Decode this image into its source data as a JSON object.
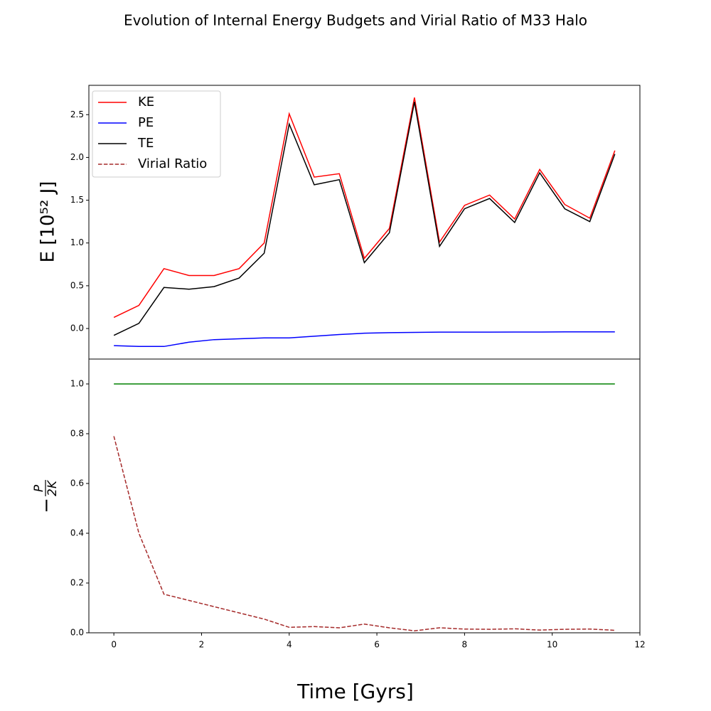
{
  "chart_data": [
    {
      "type": "line",
      "title": "Evolution of Internal Energy Budgets and Virial Ratio of M33 Halo",
      "ylabel": "E [10⁵² J]",
      "x": [
        0,
        0.571,
        1.143,
        1.714,
        2.286,
        2.857,
        3.429,
        4.0,
        4.571,
        5.143,
        5.714,
        6.286,
        6.857,
        7.429,
        8.0,
        8.571,
        9.143,
        9.714,
        10.286,
        10.857,
        11.429
      ],
      "series": [
        {
          "name": "KE",
          "color": "#ff0000",
          "values": [
            0.13,
            0.27,
            0.7,
            0.62,
            0.62,
            0.7,
            1.0,
            2.51,
            1.77,
            1.81,
            0.82,
            1.17,
            2.7,
            1.01,
            1.44,
            1.56,
            1.28,
            1.86,
            1.45,
            1.29,
            2.08
          ]
        },
        {
          "name": "PE",
          "color": "#0000ff",
          "values": [
            -0.2,
            -0.21,
            -0.21,
            -0.16,
            -0.13,
            -0.12,
            -0.11,
            -0.11,
            -0.09,
            -0.07,
            -0.055,
            -0.048,
            -0.045,
            -0.042,
            -0.042,
            -0.042,
            -0.041,
            -0.041,
            -0.039,
            -0.039,
            -0.039
          ]
        },
        {
          "name": "TE",
          "color": "#000000",
          "values": [
            -0.08,
            0.06,
            0.48,
            0.46,
            0.49,
            0.59,
            0.88,
            2.39,
            1.68,
            1.74,
            0.77,
            1.12,
            2.65,
            0.96,
            1.4,
            1.52,
            1.24,
            1.82,
            1.4,
            1.25,
            2.04
          ]
        }
      ],
      "xlim": [
        -0.57,
        12.0
      ],
      "ylim": [
        -0.357,
        2.843
      ],
      "yticks": [
        {
          "value": 0,
          "label": "0.0"
        },
        {
          "value": 0.5,
          "label": "0.5"
        },
        {
          "value": 1,
          "label": "1.0"
        },
        {
          "value": 1.5,
          "label": "1.5"
        },
        {
          "value": 2,
          "label": "2.0"
        },
        {
          "value": 2.5,
          "label": "2.5"
        }
      ],
      "legend": "upper left",
      "grid": false
    },
    {
      "type": "line",
      "ylabel": {
        "sign": "−",
        "numerator": "P",
        "denominator": "2K"
      },
      "xlabel": "Time [Gyrs]",
      "x": [
        0,
        0.571,
        1.143,
        1.714,
        2.286,
        2.857,
        3.429,
        4.0,
        4.571,
        5.143,
        5.714,
        6.286,
        6.857,
        7.429,
        8.0,
        8.571,
        9.143,
        9.714,
        10.286,
        10.857,
        11.429
      ],
      "series": [
        {
          "color": "#008000",
          "values": [
            1,
            1,
            1,
            1,
            1,
            1,
            1,
            1,
            1,
            1,
            1,
            1,
            1,
            1,
            1,
            1,
            1,
            1,
            1,
            1,
            1
          ]
        },
        {
          "name": "Virial Ratio",
          "color": "#a52a2a",
          "dashed": true,
          "values": [
            0.79,
            0.4,
            0.155,
            0.13,
            0.105,
            0.08,
            0.055,
            0.022,
            0.025,
            0.02,
            0.035,
            0.02,
            0.008,
            0.02,
            0.015,
            0.014,
            0.016,
            0.011,
            0.014,
            0.015,
            0.01
          ]
        }
      ],
      "xlim": [
        -0.57,
        12.0
      ],
      "ylim": [
        0,
        1.1
      ],
      "xticks": [
        0,
        2,
        4,
        6,
        8,
        10,
        12
      ],
      "yticks": [
        {
          "value": 0,
          "label": "0.0"
        },
        {
          "value": 0.2,
          "label": "0.2"
        },
        {
          "value": 0.4,
          "label": "0.4"
        },
        {
          "value": 0.6,
          "label": "0.6"
        },
        {
          "value": 0.8,
          "label": "0.8"
        },
        {
          "value": 1,
          "label": "1.0"
        }
      ],
      "grid": false
    }
  ]
}
